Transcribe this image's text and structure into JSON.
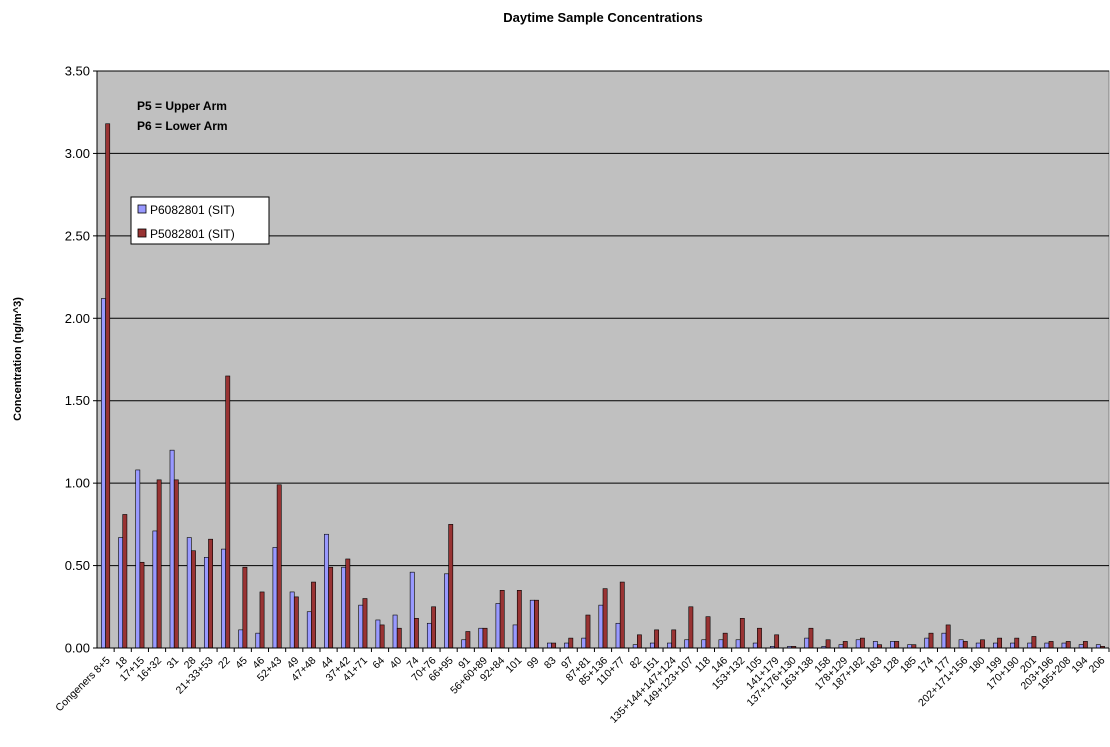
{
  "chart_data": {
    "type": "bar",
    "title": "Daytime Sample Concentrations",
    "xlabel": "",
    "ylabel": "Concentration (ng/m^3)",
    "ylim": [
      0,
      3.5
    ],
    "yticks": [
      "0.00",
      "0.50",
      "1.00",
      "1.50",
      "2.00",
      "2.50",
      "3.00",
      "3.50"
    ],
    "grid": true,
    "legend_position": "upper-left",
    "annotations": [
      "P5 = Upper Arm",
      "P6 = Lower Arm"
    ],
    "categories": [
      "Congeners 8+5",
      "18",
      "17+15",
      "16+32",
      "31",
      "28",
      "21+33+53",
      "22",
      "45",
      "46",
      "52+43",
      "49",
      "47+48",
      "44",
      "37+42",
      "41+71",
      "64",
      "40",
      "74",
      "70+76",
      "66+95",
      "91",
      "56+60+89",
      "92+84",
      "101",
      "99",
      "83",
      "97",
      "87+81",
      "85+136",
      "110+77",
      "82",
      "151",
      "135+144+147+124",
      "149+123+107",
      "118",
      "146",
      "153+132",
      "105",
      "141+179",
      "137+176+130",
      "163+138",
      "158",
      "178+129",
      "187+182",
      "183",
      "128",
      "185",
      "174",
      "177",
      "202+171+156",
      "180",
      "199",
      "170+190",
      "201",
      "203+196",
      "195+208",
      "194",
      "206"
    ],
    "series": [
      {
        "name": "P6082801 (SIT)",
        "color": "#9999ff",
        "values": [
          2.12,
          0.67,
          1.08,
          0.71,
          1.2,
          0.67,
          0.55,
          0.6,
          0.11,
          0.09,
          0.61,
          0.34,
          0.22,
          0.69,
          0.49,
          0.26,
          0.17,
          0.2,
          0.46,
          0.15,
          0.45,
          0.05,
          0.12,
          0.27,
          0.14,
          0.29,
          0.03,
          0.03,
          0.06,
          0.26,
          0.15,
          0.02,
          0.03,
          0.03,
          0.05,
          0.05,
          0.05,
          0.05,
          0.03,
          0.01,
          0.01,
          0.06,
          0.01,
          0.02,
          0.05,
          0.04,
          0.04,
          0.02,
          0.06,
          0.09,
          0.05,
          0.03,
          0.03,
          0.03,
          0.03,
          0.03,
          0.03,
          0.02,
          0.02
        ]
      },
      {
        "name": "P5082801 (SIT)",
        "color": "#993333",
        "values": [
          3.18,
          0.81,
          0.52,
          1.02,
          1.02,
          0.59,
          0.66,
          1.65,
          0.49,
          0.34,
          0.99,
          0.31,
          0.4,
          0.49,
          0.54,
          0.3,
          0.14,
          0.12,
          0.18,
          0.25,
          0.75,
          0.1,
          0.12,
          0.35,
          0.35,
          0.29,
          0.03,
          0.06,
          0.2,
          0.36,
          0.4,
          0.08,
          0.11,
          0.11,
          0.25,
          0.19,
          0.09,
          0.18,
          0.12,
          0.08,
          0.01,
          0.12,
          0.05,
          0.04,
          0.06,
          0.02,
          0.04,
          0.02,
          0.09,
          0.14,
          0.04,
          0.05,
          0.06,
          0.06,
          0.07,
          0.04,
          0.04,
          0.04,
          0.01
        ]
      }
    ]
  },
  "colors": {
    "plot_background": "#c0c0c0",
    "gridline": "#000000"
  }
}
